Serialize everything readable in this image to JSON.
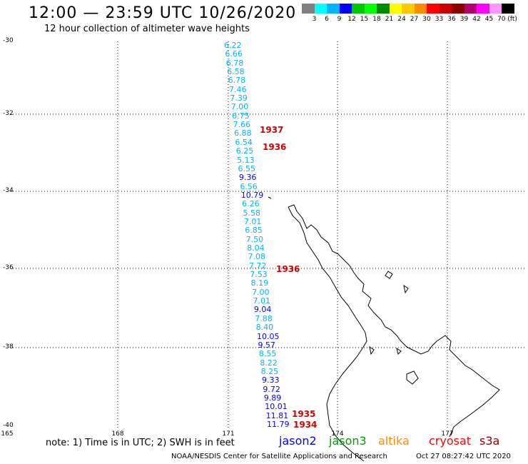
{
  "header": {
    "title": "12:00 — 23:59 UTC 10/26/2020",
    "subtitle": "12 hour collection of altimeter wave heights"
  },
  "color_scale": {
    "colors": [
      "#808080",
      "#00ffff",
      "#00b4ff",
      "#0000ff",
      "#00c800",
      "#00ff00",
      "#008c00",
      "#ffff00",
      "#ffc800",
      "#ff8c00",
      "#ff0000",
      "#c80000",
      "#8c0000",
      "#b40070",
      "#ff00ff",
      "#ff96ff",
      "#000000"
    ],
    "labels": [
      "3",
      "6",
      "9",
      "12",
      "15",
      "18",
      "21",
      "24",
      "27",
      "30",
      "33",
      "36",
      "39",
      "42",
      "45",
      "70 (ft)"
    ]
  },
  "map": {
    "lat_labels": [
      "-30",
      "-32",
      "-34",
      "-36",
      "-38",
      "-40"
    ],
    "lon_labels": [
      "165",
      "168",
      "171",
      "174",
      "177"
    ],
    "wave_heights": [
      {
        "v": "6.22",
        "c": "#00b4ff"
      },
      {
        "v": "6.66",
        "c": "#00b4ff"
      },
      {
        "v": "6.78",
        "c": "#00b4ff"
      },
      {
        "v": "6.58",
        "c": "#00b4ff"
      },
      {
        "v": "6.78",
        "c": "#00b4ff"
      },
      {
        "v": "7.46",
        "c": "#00b4ff"
      },
      {
        "v": "7.39",
        "c": "#00b4ff"
      },
      {
        "v": "7.00",
        "c": "#00b4ff"
      },
      {
        "v": "6.75",
        "c": "#00b4ff"
      },
      {
        "v": "7.66",
        "c": "#00b4ff"
      },
      {
        "v": "6.88",
        "c": "#00b4ff"
      },
      {
        "v": "6.54",
        "c": "#00b4ff"
      },
      {
        "v": "6.25",
        "c": "#00b4ff"
      },
      {
        "v": "5.13",
        "c": "#00b4ff"
      },
      {
        "v": "6.55",
        "c": "#00b4ff"
      },
      {
        "v": "9.36",
        "c": "#0000ff"
      },
      {
        "v": "6.56",
        "c": "#00b4ff"
      },
      {
        "v": "10.79",
        "c": "#0000ff"
      },
      {
        "v": "6.26",
        "c": "#00b4ff"
      },
      {
        "v": "5.58",
        "c": "#00b4ff"
      },
      {
        "v": "7.01",
        "c": "#00b4ff"
      },
      {
        "v": "6.85",
        "c": "#00b4ff"
      },
      {
        "v": "7.50",
        "c": "#00b4ff"
      },
      {
        "v": "8.04",
        "c": "#00b4ff"
      },
      {
        "v": "7.08",
        "c": "#00b4ff"
      },
      {
        "v": "7.72",
        "c": "#00b4ff"
      },
      {
        "v": "7.53",
        "c": "#00b4ff"
      },
      {
        "v": "8.19",
        "c": "#00b4ff"
      },
      {
        "v": "7.00",
        "c": "#00b4ff"
      },
      {
        "v": "7.01",
        "c": "#00b4ff"
      },
      {
        "v": "9.04",
        "c": "#0000ff"
      },
      {
        "v": "7.88",
        "c": "#00b4ff"
      },
      {
        "v": "8.40",
        "c": "#00b4ff"
      },
      {
        "v": "10.05",
        "c": "#0000ff"
      },
      {
        "v": "9.57",
        "c": "#0000ff"
      },
      {
        "v": "8.55",
        "c": "#00b4ff"
      },
      {
        "v": "8.22",
        "c": "#00b4ff"
      },
      {
        "v": "8.25",
        "c": "#00b4ff"
      },
      {
        "v": "9.33",
        "c": "#0000ff"
      },
      {
        "v": "9.72",
        "c": "#0000ff"
      },
      {
        "v": "9.89",
        "c": "#0000ff"
      },
      {
        "v": "10.01",
        "c": "#0000ff"
      },
      {
        "v": "11.81",
        "c": "#0000ff"
      },
      {
        "v": "11.79",
        "c": "#0000ff"
      }
    ],
    "pass_times": [
      "1937",
      "1936",
      "1936",
      "1935",
      "1934"
    ]
  },
  "note": "note:  1) Time is in UTC;  2) SWH is in feet",
  "satellites": [
    {
      "name": "jason2",
      "color": "#0000ff"
    },
    {
      "name": "jason3",
      "color": "#00a000"
    },
    {
      "name": "altika",
      "color": "#ff8c00"
    },
    {
      "name": "cryosat",
      "color": "#ff0000"
    },
    {
      "name": "s3a",
      "color": "#8c0000"
    }
  ],
  "footer": {
    "credit": "NOAA/NESDIS Center for Satellite Applications and Research",
    "timestamp": "Oct 27 08:27:42 UTC 2020"
  }
}
